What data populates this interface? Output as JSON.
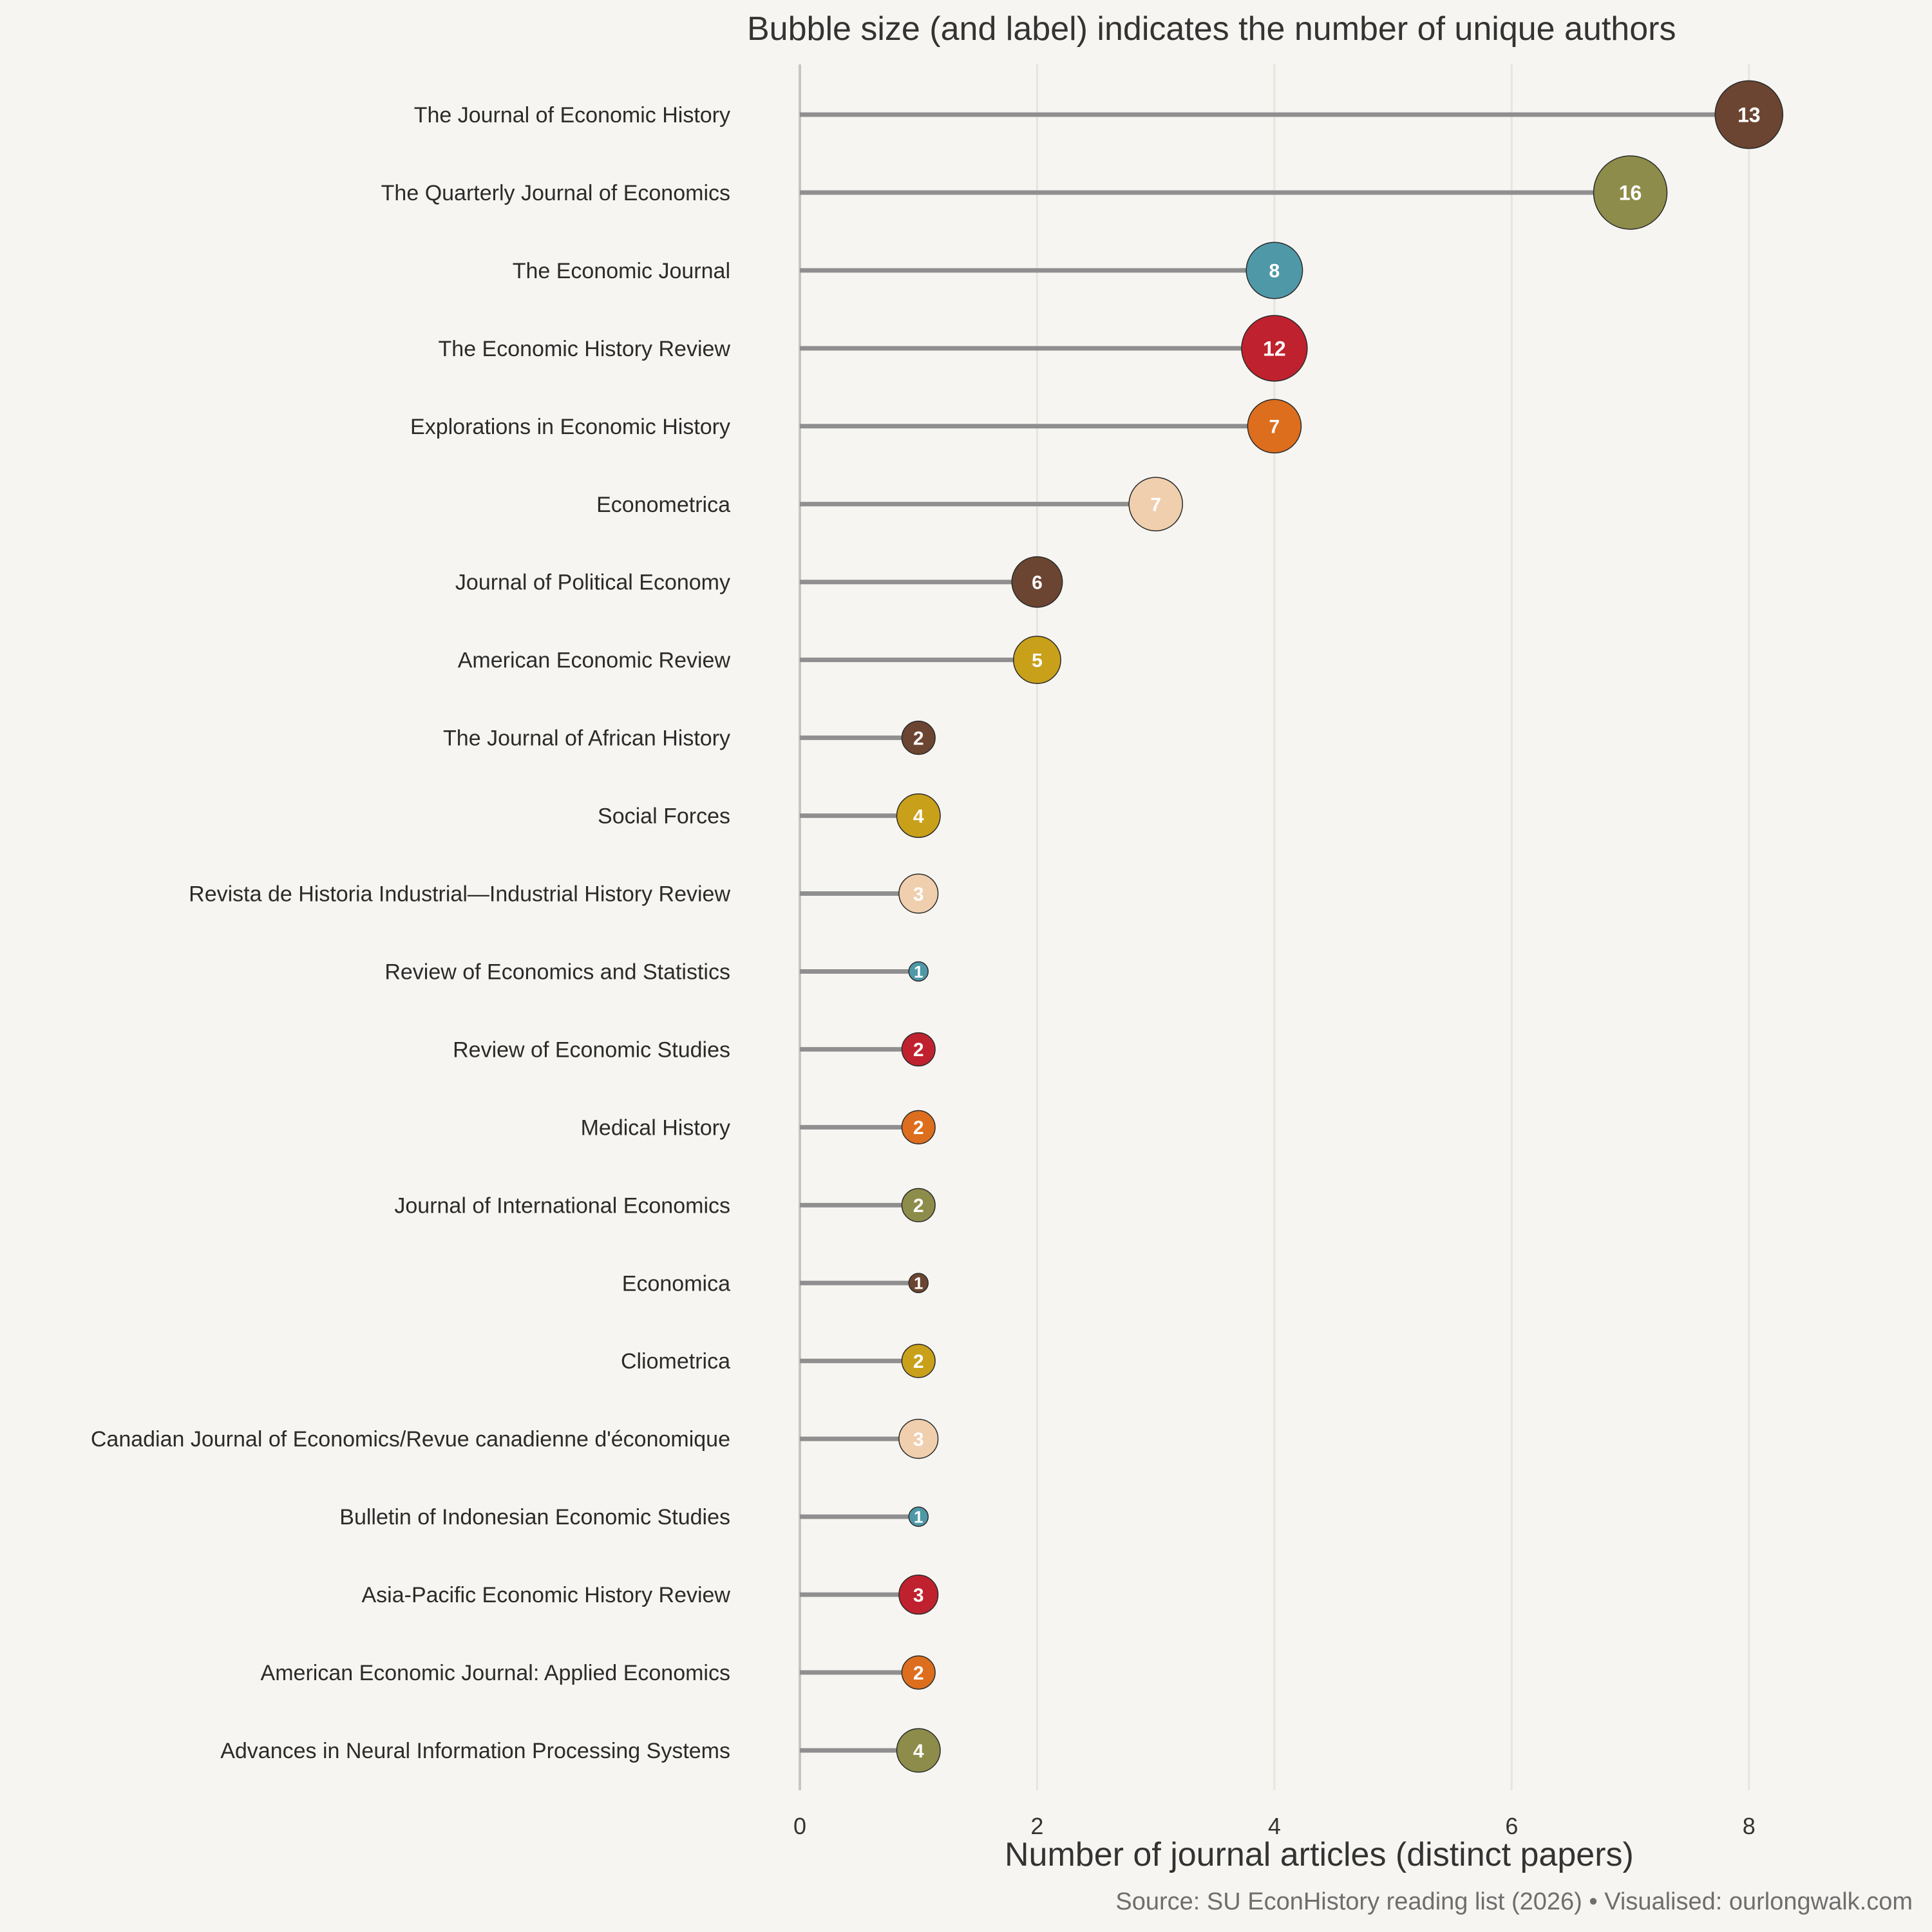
{
  "chart_data": {
    "type": "lollipop",
    "title": "Bubble size (and label) indicates the number of unique authors",
    "xlabel": "Number of journal articles (distinct papers)",
    "ylabel": "",
    "source": "Source: SU EconHistory reading list (2026) • Visualised: ourlongwalk.com",
    "xlim": [
      0,
      9
    ],
    "xticks": [
      0,
      2,
      4,
      6,
      8
    ],
    "grid": "vertical",
    "size_encoding": "unique authors",
    "items": [
      {
        "journal": "The Journal of Economic History",
        "articles": 8,
        "authors": 13,
        "color": "#6b4532"
      },
      {
        "journal": "The Quarterly Journal of Economics",
        "articles": 7,
        "authors": 16,
        "color": "#8d8c4a"
      },
      {
        "journal": "The Economic Journal",
        "articles": 4,
        "authors": 8,
        "color": "#4f98a8"
      },
      {
        "journal": "The Economic History Review",
        "articles": 4,
        "authors": 12,
        "color": "#c0212e"
      },
      {
        "journal": "Explorations in Economic History",
        "articles": 4,
        "authors": 7,
        "color": "#dc6e1e"
      },
      {
        "journal": "Econometrica",
        "articles": 3,
        "authors": 7,
        "color": "#f0cfae"
      },
      {
        "journal": "Journal of Political Economy",
        "articles": 2,
        "authors": 6,
        "color": "#6b4532"
      },
      {
        "journal": "American Economic Review",
        "articles": 2,
        "authors": 5,
        "color": "#c9a01a"
      },
      {
        "journal": "The Journal of African History",
        "articles": 1,
        "authors": 2,
        "color": "#6b4532"
      },
      {
        "journal": "Social Forces",
        "articles": 1,
        "authors": 4,
        "color": "#c9a01a"
      },
      {
        "journal": "Revista de Historia Industrial—Industrial History Review",
        "articles": 1,
        "authors": 3,
        "color": "#f0cfae"
      },
      {
        "journal": "Review of Economics and Statistics",
        "articles": 1,
        "authors": 1,
        "color": "#4f98a8"
      },
      {
        "journal": "Review of Economic Studies",
        "articles": 1,
        "authors": 2,
        "color": "#c0212e"
      },
      {
        "journal": "Medical History",
        "articles": 1,
        "authors": 2,
        "color": "#dc6e1e"
      },
      {
        "journal": "Journal of International Economics",
        "articles": 1,
        "authors": 2,
        "color": "#8d8c4a"
      },
      {
        "journal": "Economica",
        "articles": 1,
        "authors": 1,
        "color": "#6b4532"
      },
      {
        "journal": "Cliometrica",
        "articles": 1,
        "authors": 2,
        "color": "#c9a01a"
      },
      {
        "journal": "Canadian Journal of Economics/Revue canadienne d'économique",
        "articles": 1,
        "authors": 3,
        "color": "#f0cfae"
      },
      {
        "journal": "Bulletin of Indonesian Economic Studies",
        "articles": 1,
        "authors": 1,
        "color": "#4f98a8"
      },
      {
        "journal": "Asia-Pacific Economic History Review",
        "articles": 1,
        "authors": 3,
        "color": "#c0212e"
      },
      {
        "journal": "American Economic Journal: Applied Economics",
        "articles": 1,
        "authors": 2,
        "color": "#dc6e1e"
      },
      {
        "journal": "Advances in Neural Information Processing Systems",
        "articles": 1,
        "authors": 4,
        "color": "#8d8c4a"
      }
    ]
  }
}
